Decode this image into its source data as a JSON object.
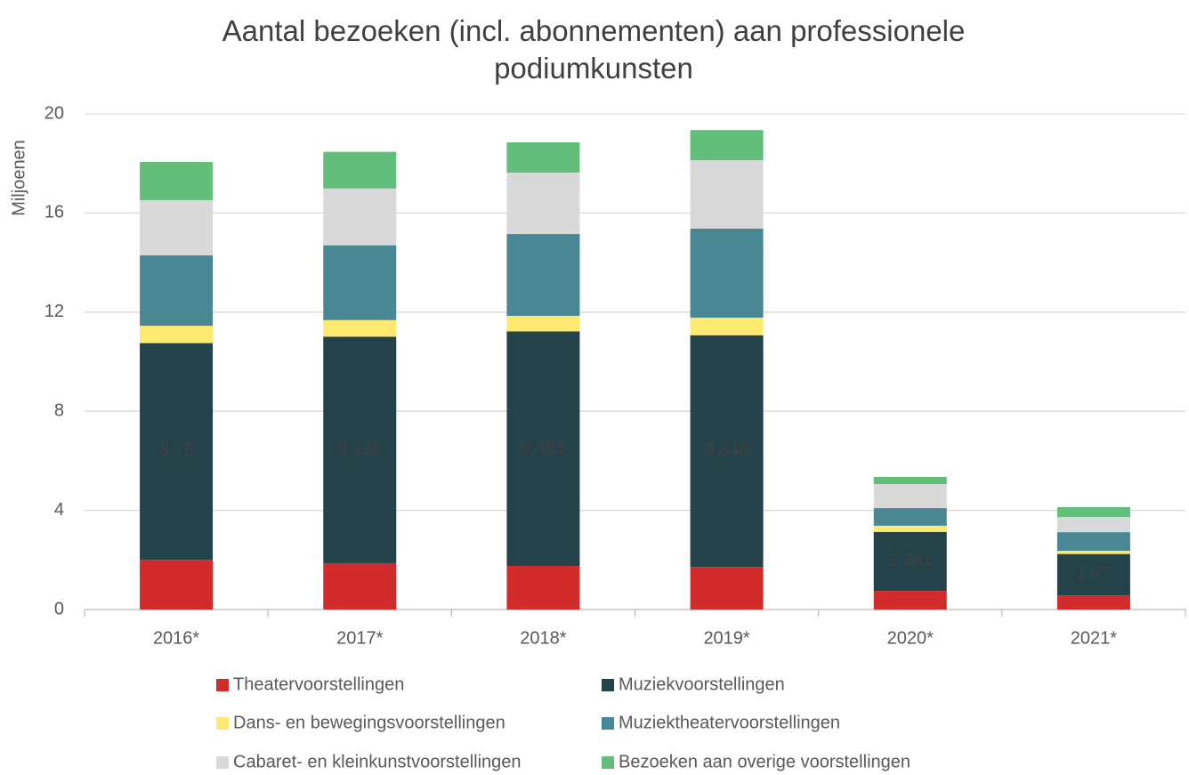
{
  "chart_data": {
    "type": "stacked_bar",
    "title": "Aantal bezoeken (incl. abonnementen) aan professionele podiumkunsten",
    "y_label": "Miljoenen",
    "categories": [
      "2016*",
      "2017*",
      "2018*",
      "2019*",
      "2020*",
      "2021*"
    ],
    "ylim": [
      0,
      20
    ],
    "yticks": [
      0,
      4,
      8,
      12,
      16,
      20
    ],
    "grid": true,
    "series": [
      {
        "name": "Theatervoorstellingen",
        "color": "#d22b2b",
        "values": [
          2.0,
          1.87,
          1.76,
          1.72,
          0.75,
          0.57
        ]
      },
      {
        "name": "Muziekvoorstellingen",
        "color": "#24424a",
        "values": [
          8.75,
          9.138,
          9.461,
          9.348,
          2.381,
          1.67
        ],
        "value_labels": [
          "8,75",
          "9,138",
          "9,461",
          "9,348",
          "2,381",
          "1,67"
        ]
      },
      {
        "name": "Dans- en bewegingsvoorstellingen",
        "color": "#fde96f",
        "values": [
          0.7,
          0.67,
          0.63,
          0.71,
          0.25,
          0.13
        ]
      },
      {
        "name": "Muziektheatervoorstellingen",
        "color": "#4a8794",
        "values": [
          2.84,
          3.02,
          3.3,
          3.59,
          0.71,
          0.75
        ]
      },
      {
        "name": "Cabaret- en kleinkunstvoorstellingen",
        "color": "#d9d9d9",
        "values": [
          2.23,
          2.29,
          2.48,
          2.76,
          0.97,
          0.61
        ]
      },
      {
        "name": "Bezoeken aan overige voorstellingen",
        "color": "#63be7b",
        "values": [
          1.54,
          1.48,
          1.22,
          1.22,
          0.29,
          0.4
        ]
      }
    ]
  }
}
